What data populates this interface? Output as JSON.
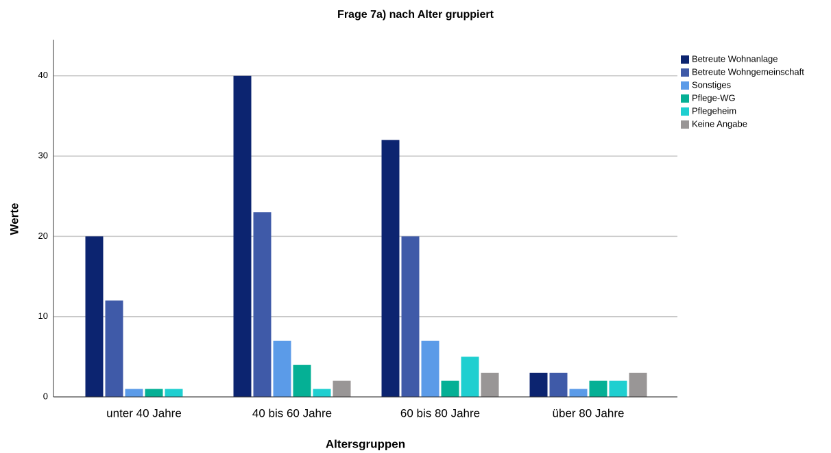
{
  "chart_data": {
    "type": "bar",
    "title": "Frage 7a) nach Alter gruppiert",
    "x_label": "Altersgruppen",
    "y_label": "Werte",
    "categories": [
      "unter 40 Jahre",
      "40 bis 60 Jahre",
      "60 bis 80 Jahre",
      "über 80 Jahre"
    ],
    "series": [
      {
        "name": "Betreute Wohnanlage",
        "color": "#0c2470",
        "values": [
          20,
          40,
          32,
          3
        ]
      },
      {
        "name": "Betreute Wohngemeinschaft",
        "color": "#3f5aa8",
        "values": [
          12,
          23,
          20,
          3
        ]
      },
      {
        "name": "Sonstiges",
        "color": "#5b9be8",
        "values": [
          1,
          7,
          7,
          1
        ]
      },
      {
        "name": "Pflege-WG",
        "color": "#05b095",
        "values": [
          1,
          4,
          2,
          2
        ]
      },
      {
        "name": "Pflegeheim",
        "color": "#1fcfd0",
        "values": [
          1,
          1,
          5,
          2
        ]
      },
      {
        "name": "Keine Angabe",
        "color": "#999696",
        "values": [
          0,
          2,
          3,
          3
        ]
      }
    ],
    "ylim": [
      0,
      44.5
    ],
    "yticks": [
      0,
      10,
      20,
      30,
      40
    ],
    "grid": true,
    "legend": "right"
  }
}
